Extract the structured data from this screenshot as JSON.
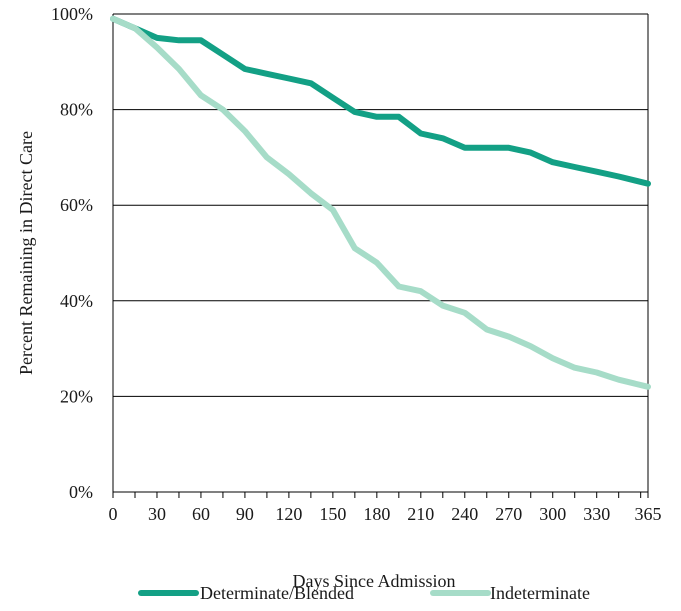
{
  "chart_data": {
    "type": "line",
    "title": "",
    "xlabel": "Days Since Admission",
    "ylabel": "Percent Remaining in Direct Care",
    "xlim": [
      0,
      365
    ],
    "ylim": [
      0,
      100
    ],
    "x_ticks": [
      0,
      30,
      60,
      90,
      120,
      150,
      180,
      210,
      240,
      270,
      300,
      330,
      365
    ],
    "x_tick_labels": [
      "0",
      "30",
      "60",
      "90",
      "120",
      "150",
      "180",
      "210",
      "240",
      "270",
      "300",
      "330",
      "365"
    ],
    "y_ticks": [
      0,
      20,
      40,
      60,
      80,
      100
    ],
    "y_tick_labels": [
      "0%",
      "20%",
      "40%",
      "60%",
      "80%",
      "100%"
    ],
    "grid": "horizontal",
    "legend_position": "bottom",
    "series": [
      {
        "name": "Determinate/Blended",
        "color": "#13a085",
        "x": [
          0,
          15,
          30,
          45,
          60,
          75,
          90,
          105,
          120,
          135,
          150,
          165,
          180,
          195,
          210,
          225,
          240,
          255,
          270,
          285,
          300,
          315,
          330,
          345,
          365
        ],
        "y": [
          99,
          97,
          95,
          94.5,
          94.5,
          91.5,
          88.5,
          87.5,
          86.5,
          85.5,
          82.5,
          79.5,
          78.5,
          78.5,
          75,
          74,
          72,
          72,
          72,
          71,
          69,
          68,
          67,
          66,
          64.5
        ]
      },
      {
        "name": "Indeterminate",
        "color": "#a6dcc8",
        "x": [
          0,
          15,
          30,
          45,
          60,
          75,
          90,
          105,
          120,
          135,
          150,
          165,
          180,
          195,
          210,
          225,
          240,
          255,
          270,
          285,
          300,
          315,
          330,
          345,
          365
        ],
        "y": [
          99,
          97,
          93,
          88.5,
          83,
          80,
          75.5,
          70,
          66.5,
          62.5,
          59,
          51,
          48,
          43,
          42,
          39,
          37.5,
          34,
          32.5,
          30.5,
          28,
          26,
          25,
          23.5,
          22
        ]
      }
    ]
  }
}
